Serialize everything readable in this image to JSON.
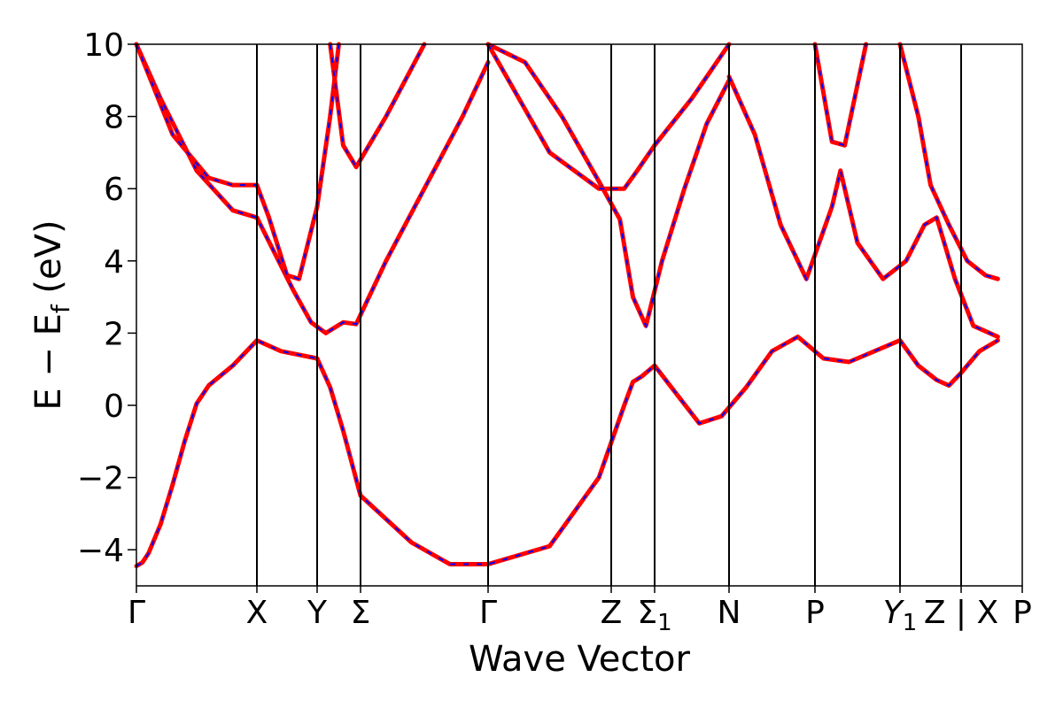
{
  "chart_data": {
    "type": "line",
    "title": "",
    "xlabel": "Wave Vector",
    "ylabel": {
      "main": "E − E",
      "sub": "f",
      "unit": " (eV)"
    },
    "ylim": [
      -5,
      10
    ],
    "yticks": [
      {
        "value": 10,
        "label": "10"
      },
      {
        "value": 8,
        "label": "8"
      },
      {
        "value": 6,
        "label": "6"
      },
      {
        "value": 4,
        "label": "4"
      },
      {
        "value": 2,
        "label": "2"
      },
      {
        "value": 0,
        "label": "0"
      },
      {
        "value": -2,
        "label": "−2"
      },
      {
        "value": -4,
        "label": "−4"
      }
    ],
    "grid": false,
    "kpoints": [
      {
        "label": "Γ",
        "sub": "",
        "italic": false
      },
      {
        "label": "X",
        "sub": "",
        "italic": false
      },
      {
        "label": "Y",
        "sub": "",
        "italic": false
      },
      {
        "label": "Σ",
        "sub": "",
        "italic": false
      },
      {
        "label": "Γ",
        "sub": "",
        "italic": false
      },
      {
        "label": "Z",
        "sub": "",
        "italic": false
      },
      {
        "label": "Σ",
        "sub": "1",
        "italic": false
      },
      {
        "label": "N",
        "sub": "",
        "italic": false
      },
      {
        "label": "P",
        "sub": "",
        "italic": false
      },
      {
        "label": "Y",
        "sub": "1",
        "italic": true
      },
      {
        "label": "Z | X",
        "sub": "",
        "italic": false
      },
      {
        "label": "P",
        "sub": "",
        "italic": false
      }
    ],
    "band_style": {
      "solid_color": "#ff0000",
      "dashed_color": "#0000ff"
    },
    "series": [
      {
        "name": "",
        "segments": [
          [
            [
              0,
              -4.45
            ],
            [
              0.05,
              -4.35
            ],
            [
              0.1,
              -4.1
            ],
            [
              0.2,
              -3.3
            ],
            [
              0.3,
              -2.2
            ],
            [
              0.4,
              -1.0
            ],
            [
              0.5,
              0.05
            ],
            [
              0.6,
              0.55
            ],
            [
              0.8,
              1.1
            ],
            [
              1.0,
              1.8
            ],
            [
              1.4,
              1.5
            ],
            [
              2.0,
              1.3
            ],
            [
              2.3,
              0.5
            ],
            [
              2.6,
              -0.7
            ],
            [
              3.0,
              -2.5
            ],
            [
              3.4,
              -3.8
            ],
            [
              3.7,
              -4.4
            ],
            [
              4.0,
              -4.4
            ],
            [
              4.5,
              -3.9
            ],
            [
              4.9,
              -2.0
            ],
            [
              5.3,
              0.0
            ],
            [
              5.5,
              0.65
            ],
            [
              5.7,
              0.8
            ],
            [
              6.0,
              1.1
            ],
            [
              6.3,
              0.3
            ],
            [
              6.6,
              -0.5
            ],
            [
              6.9,
              -0.3
            ],
            [
              7.2,
              0.5
            ],
            [
              7.5,
              1.5
            ],
            [
              7.8,
              1.9
            ],
            [
              8.1,
              1.3
            ],
            [
              8.4,
              1.2
            ],
            [
              8.7,
              1.5
            ],
            [
              9.0,
              1.8
            ],
            [
              9.3,
              1.1
            ],
            [
              9.6,
              0.7
            ],
            [
              9.8,
              0.55
            ],
            [
              10.0,
              0.9
            ],
            [
              10.3,
              1.5
            ],
            [
              10.6,
              1.8
            ]
          ]
        ]
      },
      {
        "name": "",
        "segments": [
          [
            [
              0,
              10.0
            ],
            [
              0.2,
              8.5
            ],
            [
              0.5,
              6.5
            ],
            [
              0.8,
              5.4
            ],
            [
              1.0,
              5.2
            ],
            [
              1.3,
              4.2
            ],
            [
              1.6,
              3.2
            ],
            [
              1.9,
              2.3
            ],
            [
              2.2,
              2.0
            ],
            [
              2.6,
              2.3
            ],
            [
              2.9,
              2.25
            ],
            [
              3.2,
              4.0
            ],
            [
              3.5,
              6.0
            ],
            [
              3.8,
              8.0
            ],
            [
              4.0,
              9.5
            ]
          ],
          [
            [
              4.0,
              10.0
            ],
            [
              4.3,
              9.5
            ],
            [
              4.6,
              8.0
            ],
            [
              4.9,
              6.2
            ],
            [
              5.2,
              5.15
            ],
            [
              5.5,
              3.0
            ],
            [
              5.8,
              2.2
            ],
            [
              6.1,
              4.0
            ],
            [
              6.4,
              6.0
            ],
            [
              6.7,
              7.8
            ],
            [
              7.0,
              9.0
            ]
          ],
          [
            [
              7.0,
              9.1
            ],
            [
              7.3,
              7.5
            ],
            [
              7.6,
              5.0
            ],
            [
              7.9,
              3.5
            ],
            [
              8.2,
              5.5
            ],
            [
              8.3,
              6.5
            ],
            [
              8.5,
              4.5
            ],
            [
              8.8,
              3.5
            ],
            [
              9.1,
              4.0
            ],
            [
              9.4,
              5.0
            ],
            [
              9.6,
              5.2
            ],
            [
              9.9,
              3.5
            ],
            [
              10.2,
              2.2
            ],
            [
              10.6,
              1.9
            ]
          ]
        ]
      },
      {
        "name": "",
        "segments": [
          [
            [
              0,
              10.0
            ],
            [
              0.3,
              7.5
            ],
            [
              0.6,
              6.3
            ],
            [
              0.8,
              6.1
            ],
            [
              1.0,
              6.1
            ],
            [
              1.2,
              5.2
            ],
            [
              1.5,
              3.6
            ],
            [
              1.7,
              3.5
            ],
            [
              2.0,
              5.5
            ],
            [
              2.3,
              8.0
            ],
            [
              2.5,
              10.0
            ]
          ],
          [
            [
              2.3,
              10.0
            ],
            [
              2.6,
              7.2
            ],
            [
              2.9,
              6.6
            ],
            [
              3.2,
              8.0
            ],
            [
              3.5,
              10.0
            ]
          ],
          [
            [
              4.0,
              10.0
            ],
            [
              4.5,
              7.0
            ],
            [
              4.9,
              6.0
            ],
            [
              5.3,
              6.0
            ],
            [
              5.6,
              6.5
            ],
            [
              6.0,
              7.2
            ],
            [
              6.5,
              8.5
            ],
            [
              7.0,
              10.0
            ]
          ],
          [
            [
              8.0,
              10.0
            ],
            [
              8.2,
              7.3
            ],
            [
              8.35,
              7.2
            ],
            [
              8.6,
              10.0
            ]
          ],
          [
            [
              9.0,
              10.0
            ],
            [
              9.3,
              8.0
            ],
            [
              9.5,
              6.1
            ],
            [
              9.8,
              5.0
            ],
            [
              10.1,
              4.0
            ],
            [
              10.4,
              3.6
            ],
            [
              10.6,
              3.5
            ]
          ]
        ]
      }
    ]
  }
}
